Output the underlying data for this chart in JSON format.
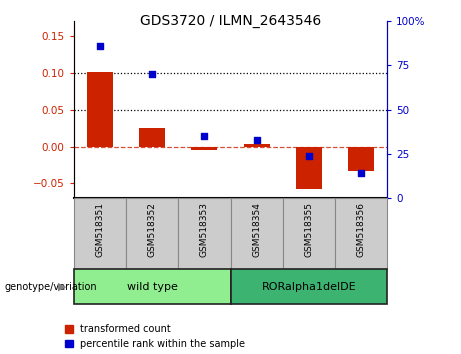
{
  "title": "GDS3720 / ILMN_2643546",
  "categories": [
    "GSM518351",
    "GSM518352",
    "GSM518353",
    "GSM518354",
    "GSM518355",
    "GSM518356"
  ],
  "bar_values": [
    0.101,
    0.025,
    -0.005,
    0.003,
    -0.058,
    -0.033
  ],
  "scatter_percentile": [
    86,
    70,
    35,
    33,
    24,
    14
  ],
  "bar_color": "#cc2200",
  "scatter_color": "#0000cc",
  "ylim_left": [
    -0.07,
    0.17
  ],
  "ylim_right": [
    0,
    100
  ],
  "yticks_left": [
    -0.05,
    0.0,
    0.05,
    0.1,
    0.15
  ],
  "yticks_right": [
    0,
    25,
    50,
    75,
    100
  ],
  "hlines": [
    0.05,
    0.1
  ],
  "group_labels": [
    "wild type",
    "RORalpha1delDE"
  ],
  "group_colors": [
    "#90ee90",
    "#3cb371"
  ],
  "legend_bar_label": "transformed count",
  "legend_scatter_label": "percentile rank within the sample",
  "genotype_label": "genotype/variation",
  "bar_width": 0.5,
  "title_fontsize": 10
}
